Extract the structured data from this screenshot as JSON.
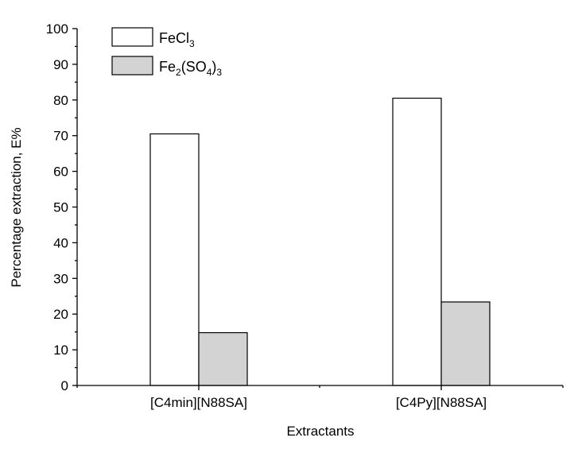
{
  "chart_data": {
    "type": "bar",
    "categories": [
      "[C4min][N88SA]",
      "[C4Py][N88SA]"
    ],
    "series": [
      {
        "name": "FeCl3",
        "name_parts": [
          "FeCl",
          "3"
        ],
        "color": "#ffffff",
        "values": [
          70.5,
          80.5
        ]
      },
      {
        "name": "Fe2(SO4)3",
        "name_parts": [
          "Fe",
          "2",
          "(SO",
          "4",
          ")",
          "3"
        ],
        "color": "#d3d3d3",
        "values": [
          14.8,
          23.4
        ]
      }
    ],
    "xlabel": "Extractants",
    "ylabel": "Percentage extraction, E%",
    "ylim": [
      0,
      100
    ],
    "yticks": [
      0,
      10,
      20,
      30,
      40,
      50,
      60,
      70,
      80,
      90,
      100
    ],
    "legend_position": "top-left",
    "grid": false
  }
}
